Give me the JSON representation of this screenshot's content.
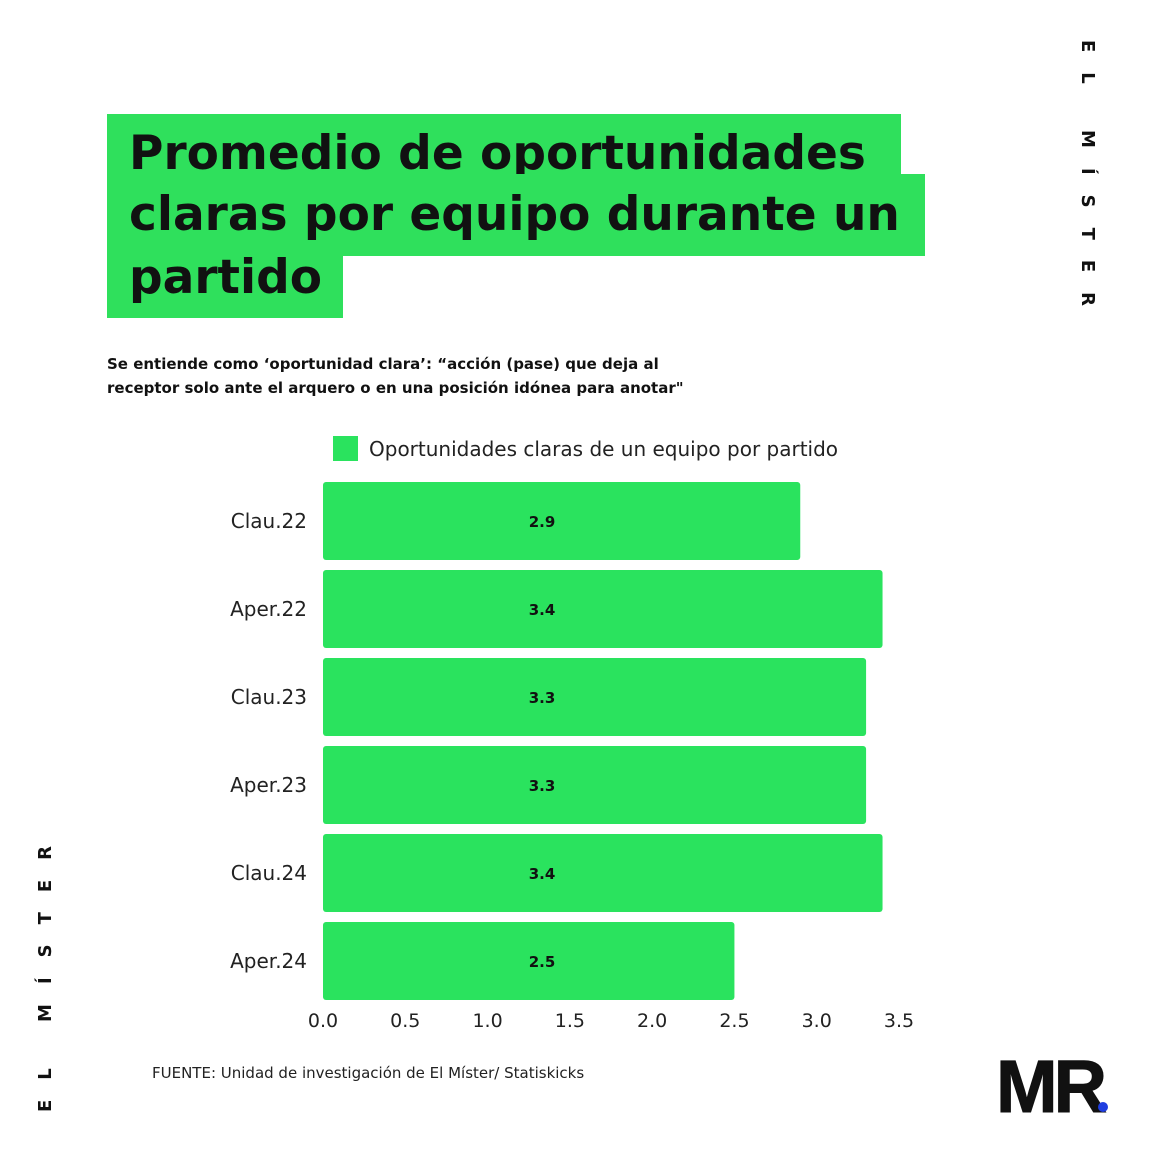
{
  "title_lines": [
    "Promedio de oportunidades",
    "claras por equipo durante un",
    "partido"
  ],
  "subtitle_lines": [
    "Se entiende como ‘oportunidad clara’: “acción (pase) que deja al",
    "receptor solo ante el arquero o en una posición idónea para anotar\""
  ],
  "brand_vertical": "EL MÍSTER",
  "source": "FUENTE: Unidad de investigación de El Míster/  Statiskicks",
  "logo_text": "MR",
  "colors": {
    "bar": "#2ae35e",
    "title_bg": "#2fe05c",
    "logo_dot": "#1f3ee0"
  },
  "chart_data": {
    "type": "bar",
    "orientation": "horizontal",
    "categories": [
      "Clau.22",
      "Aper.22",
      "Clau.23",
      "Aper.23",
      "Clau.24",
      "Aper.24"
    ],
    "series": [
      {
        "name": "Oportunidades claras de un equipo por partido",
        "values": [
          2.9,
          3.4,
          3.3,
          3.3,
          3.4,
          2.5
        ]
      }
    ],
    "data_labels": [
      "2.9",
      "3.4",
      "3.3",
      "3.3",
      "3.4",
      "2.5"
    ],
    "xlim": [
      0,
      3.5
    ],
    "xticks": [
      "0.0",
      "0.5",
      "1.0",
      "1.5",
      "2.0",
      "2.5",
      "3.0",
      "3.5"
    ],
    "grid": false,
    "legend_position": "top"
  }
}
